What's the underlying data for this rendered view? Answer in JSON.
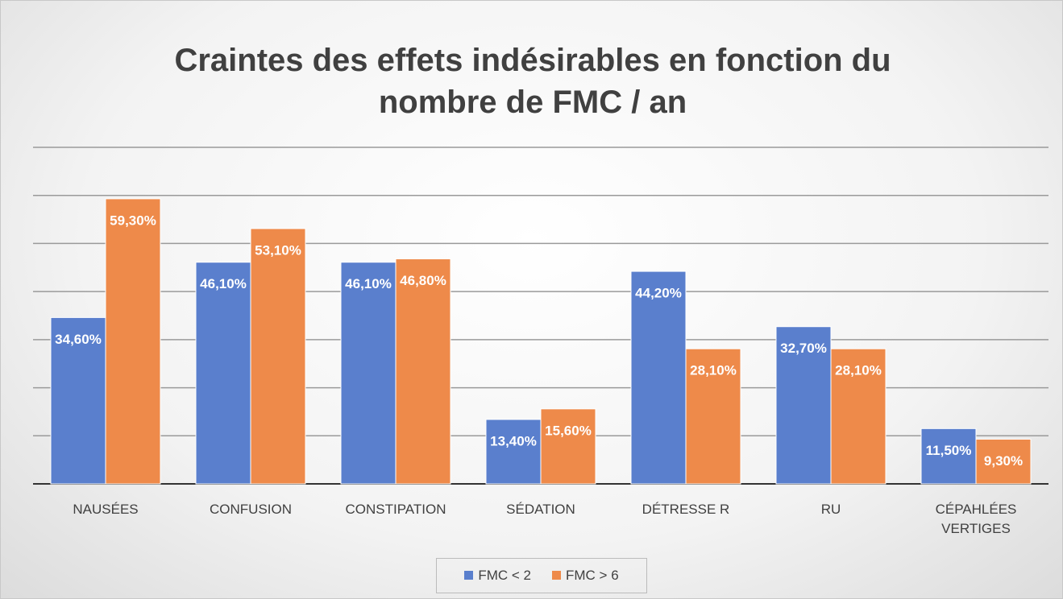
{
  "chart_data": {
    "type": "bar",
    "title": "Craintes des effets indésirables en fonction du nombre de FMC / an",
    "categories": [
      "NAUSÉES",
      "CONFUSION",
      "CONSTIPATION",
      "SÉDATION",
      "DÉTRESSE R",
      "RU",
      "CÉPAHLÉES VERTIGES"
    ],
    "series": [
      {
        "name": "FMC < 2",
        "color": "#5a7fcd",
        "values": [
          34.6,
          46.1,
          46.1,
          13.4,
          44.2,
          32.7,
          11.5
        ],
        "value_labels": [
          "34,60%",
          "46,10%",
          "46,10%",
          "13,40%",
          "44,20%",
          "32,70%",
          "11,50%"
        ]
      },
      {
        "name": "FMC > 6",
        "color": "#ee8a4a",
        "values": [
          59.3,
          53.1,
          46.8,
          15.6,
          28.1,
          28.1,
          9.3
        ],
        "value_labels": [
          "59,30%",
          "53,10%",
          "46,80%",
          "15,60%",
          "28,10%",
          "28,10%",
          "9,30%"
        ]
      }
    ],
    "ylim": [
      0,
      70
    ],
    "yticks": [
      0,
      10,
      20,
      30,
      40,
      50,
      60,
      70
    ],
    "grid": true,
    "legend": "bottom"
  }
}
